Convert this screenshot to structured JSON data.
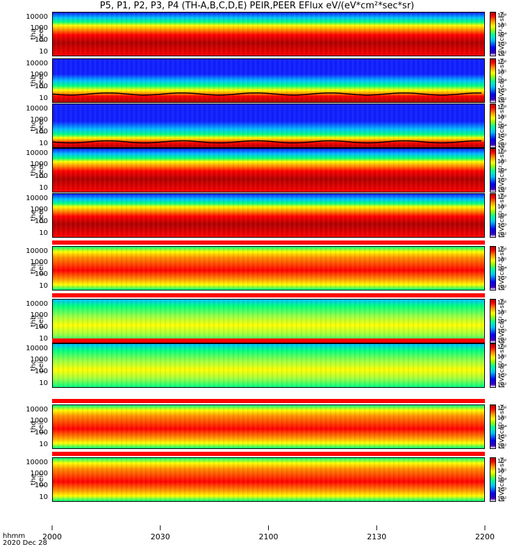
{
  "title": "P5, P1, P2, P3, P4 (TH-A,B,C,D,E) PEIR,PEER EFlux eV/(eV*cm²*sec*sr)",
  "x_axis": {
    "ticks": [
      "2000",
      "2030",
      "2100",
      "2130",
      "2200"
    ],
    "label_line1": "hhmm",
    "label_line2": "2020 Dec 28"
  },
  "colorbar_unit": "[eV/(cm²-s-sr-eV)]",
  "colorbar_ticks": [
    "10⁶",
    "10⁵",
    "10⁴",
    "10³",
    "10²"
  ],
  "ytick_labels": [
    "10000",
    "1000",
    "100",
    "10"
  ],
  "colors": {
    "high": "#b00000",
    "mid": "#ff0000",
    "warm": "#ff9000",
    "yellow": "#ffff00",
    "green": "#00ff80",
    "cyan": "#00c0ff",
    "blue": "#1020ff"
  },
  "chart_data": {
    "type": "heatmap",
    "title": "P5, P1, P2, P3, P4 (TH-A,B,C,D,E) PEIR,PEER EFlux eV/(eV*cm²*sec*sr)",
    "x_range": [
      "2000",
      "2200"
    ],
    "y_scale": "log",
    "y_range_eV": [
      5,
      30000
    ],
    "panels": [
      {
        "probe": "tha",
        "species": "peer",
        "label_line1": "tha",
        "label_line2": "peer",
        "kind": "electron",
        "scheme": "e1"
      },
      {
        "probe": "thb",
        "species": "peer",
        "label_line1": "thb",
        "label_line2": "peer",
        "kind": "electron",
        "scheme": "e2"
      },
      {
        "probe": "thc",
        "species": "peer",
        "label_line1": "thc",
        "label_line2": "peer",
        "kind": "electron",
        "scheme": "e3"
      },
      {
        "probe": "thd",
        "species": "peer",
        "label_line1": "thd",
        "label_line2": "peer",
        "kind": "electron",
        "scheme": "e1"
      },
      {
        "probe": "the",
        "species": "peer",
        "label_line1": "the",
        "label_line2": "peer",
        "kind": "electron",
        "scheme": "e1"
      },
      {
        "probe": "tha",
        "species": "peir",
        "label_line1": "tha",
        "label_line2": "peir",
        "kind": "ion",
        "scheme": "i1"
      },
      {
        "probe": "thb",
        "species": "peir",
        "label_line1": "thb",
        "label_line2": "peir",
        "kind": "ion",
        "scheme": "i2"
      },
      {
        "probe": "thc",
        "species": "peir",
        "label_line1": "thc",
        "label_line2": "peir",
        "kind": "ion",
        "scheme": "i2"
      },
      {
        "probe": "thd",
        "species": "peir",
        "label_line1": "thd",
        "label_line2": "peir",
        "kind": "ion",
        "scheme": "i1"
      },
      {
        "probe": "the",
        "species": "peir",
        "label_line1": "the",
        "label_line2": "peir",
        "kind": "ion",
        "scheme": "i1"
      }
    ],
    "colorbar_range": [
      "10²",
      "10⁶"
    ]
  }
}
